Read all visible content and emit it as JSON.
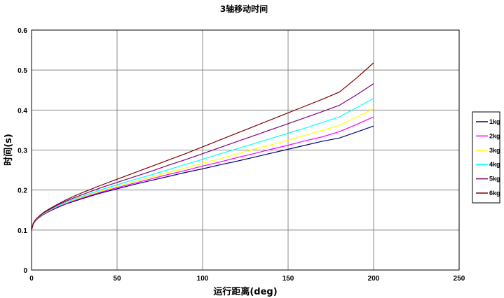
{
  "chart_data": {
    "type": "line",
    "title": "3轴移动时间",
    "xlabel": "运行距离(deg)",
    "ylabel": "时间(s)",
    "xlim": [
      0,
      250
    ],
    "ylim": [
      0,
      0.6
    ],
    "x_ticks": [
      0,
      50,
      100,
      150,
      200,
      250
    ],
    "y_ticks": [
      0,
      0.1,
      0.2,
      0.3,
      0.4,
      0.5,
      0.6
    ],
    "grid": true,
    "legend_position": "right",
    "x": [
      0,
      1,
      2,
      3,
      5,
      7,
      10,
      15,
      20,
      25,
      30,
      40,
      50,
      60,
      70,
      80,
      90,
      100,
      110,
      120,
      130,
      140,
      150,
      160,
      170,
      180,
      190,
      200
    ],
    "series": [
      {
        "name": "1kg",
        "color": "#000080",
        "values": [
          0.1,
          0.115,
          0.121,
          0.126,
          0.133,
          0.139,
          0.146,
          0.156,
          0.165,
          0.172,
          0.179,
          0.192,
          0.203,
          0.214,
          0.224,
          0.234,
          0.244,
          0.253,
          0.263,
          0.272,
          0.282,
          0.292,
          0.302,
          0.312,
          0.322,
          0.33,
          0.345,
          0.36
        ]
      },
      {
        "name": "2kg",
        "color": "#ff00ff",
        "values": [
          0.1,
          0.115,
          0.122,
          0.127,
          0.134,
          0.14,
          0.147,
          0.158,
          0.166,
          0.174,
          0.181,
          0.194,
          0.206,
          0.217,
          0.228,
          0.239,
          0.249,
          0.26,
          0.27,
          0.281,
          0.291,
          0.302,
          0.312,
          0.323,
          0.333,
          0.346,
          0.364,
          0.383
        ]
      },
      {
        "name": "3kg",
        "color": "#ffff00",
        "values": [
          0.1,
          0.116,
          0.122,
          0.127,
          0.135,
          0.141,
          0.148,
          0.159,
          0.168,
          0.176,
          0.183,
          0.197,
          0.209,
          0.221,
          0.232,
          0.244,
          0.255,
          0.267,
          0.278,
          0.29,
          0.302,
          0.313,
          0.325,
          0.337,
          0.349,
          0.362,
          0.382,
          0.404
        ]
      },
      {
        "name": "4kg",
        "color": "#00ffff",
        "values": [
          0.1,
          0.116,
          0.123,
          0.128,
          0.135,
          0.142,
          0.149,
          0.16,
          0.169,
          0.178,
          0.185,
          0.2,
          0.213,
          0.226,
          0.238,
          0.251,
          0.264,
          0.277,
          0.29,
          0.303,
          0.316,
          0.329,
          0.342,
          0.355,
          0.369,
          0.383,
          0.406,
          0.429
        ]
      },
      {
        "name": "5kg",
        "color": "#800080",
        "values": [
          0.1,
          0.116,
          0.123,
          0.128,
          0.136,
          0.143,
          0.15,
          0.162,
          0.172,
          0.181,
          0.189,
          0.205,
          0.219,
          0.233,
          0.247,
          0.262,
          0.276,
          0.291,
          0.306,
          0.321,
          0.336,
          0.351,
          0.366,
          0.381,
          0.396,
          0.412,
          0.438,
          0.466
        ]
      },
      {
        "name": "6kg",
        "color": "#800000",
        "values": [
          0.1,
          0.117,
          0.124,
          0.129,
          0.137,
          0.144,
          0.152,
          0.164,
          0.175,
          0.185,
          0.194,
          0.211,
          0.227,
          0.243,
          0.259,
          0.275,
          0.291,
          0.308,
          0.325,
          0.342,
          0.359,
          0.376,
          0.393,
          0.41,
          0.427,
          0.445,
          0.48,
          0.518
        ]
      }
    ]
  }
}
